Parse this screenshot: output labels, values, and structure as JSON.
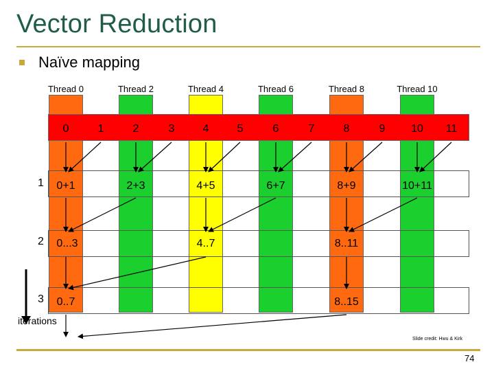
{
  "title": "Vector Reduction",
  "bullet": "Naïve mapping",
  "threads": [
    "Thread 0",
    "Thread 2",
    "Thread 4",
    "Thread 6",
    "Thread 8",
    "Thread 10"
  ],
  "elements": [
    "0",
    "1",
    "2",
    "3",
    "4",
    "5",
    "6",
    "7",
    "8",
    "9",
    "10",
    "11"
  ],
  "iterations": [
    {
      "number": "1",
      "cells": [
        "0+1",
        "2+3",
        "4+5",
        "6+7",
        "8+9",
        "10+11"
      ]
    },
    {
      "number": "2",
      "cells": [
        "0...3",
        "4..7",
        "8..11"
      ]
    },
    {
      "number": "3",
      "cells": [
        "0..7",
        "8..15"
      ]
    }
  ],
  "iterations_label": "iterations",
  "credit": "Slide credit: Hwu & Kirk",
  "page_number": "74",
  "colors": {
    "title": "#1f5d48",
    "accent_rule": "#c8a93a",
    "thread0_column": "#ff6a10",
    "even_columns": "#1bcf2e",
    "thread4_column": "#ffff00",
    "element_strip": "#ff0000"
  }
}
